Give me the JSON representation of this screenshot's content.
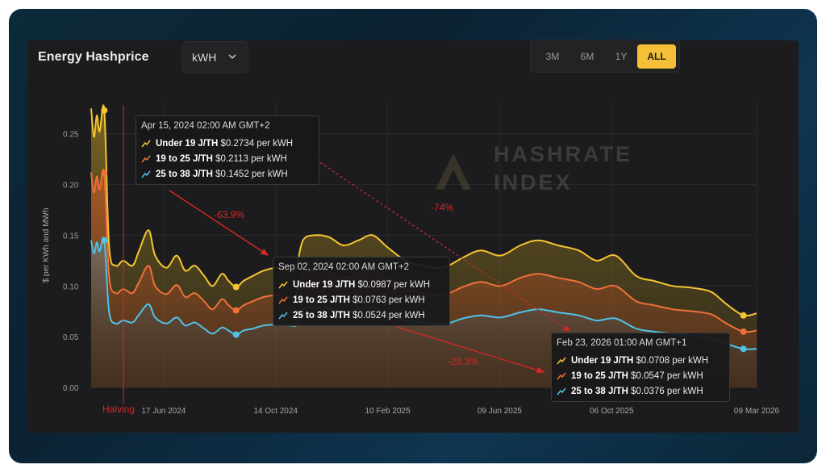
{
  "header": {
    "title": "Energy Hashprice",
    "unit_select": "kWH",
    "range_buttons": [
      "3M",
      "6M",
      "1Y",
      "ALL"
    ],
    "active_range": "ALL"
  },
  "watermark": [
    "HASHRATE",
    "INDEX"
  ],
  "colors": {
    "background": "#1c1c1e",
    "under19": "#f5c531",
    "mid": "#f0703a",
    "low": "#4fc3e8",
    "annotation": "#d42828",
    "active_button": "#f5c037"
  },
  "tooltips": [
    {
      "date": "Apr 15, 2024 02:00 AM GMT+2",
      "rows": [
        {
          "name": "Under 19 J/TH",
          "value": "$0.2734 per kWH"
        },
        {
          "name": "19 to 25 J/TH",
          "value": "$0.2113 per kWH"
        },
        {
          "name": "25 to 38 J/TH",
          "value": "$0.1452 per kWH"
        }
      ]
    },
    {
      "date": "Sep 02, 2024 02:00 AM GMT+2",
      "rows": [
        {
          "name": "Under 19 J/TH",
          "value": "$0.0987 per kWH"
        },
        {
          "name": "19 to 25 J/TH",
          "value": "$0.0763 per kWH"
        },
        {
          "name": "25 to 38 J/TH",
          "value": "$0.0524 per kWH"
        }
      ]
    },
    {
      "date": "Feb 23, 2026 01:00 AM GMT+1",
      "rows": [
        {
          "name": "Under 19 J/TH",
          "value": "$0.0708 per kWH"
        },
        {
          "name": "19 to 25 J/TH",
          "value": "$0.0547 per kWH"
        },
        {
          "name": "25 to 38 J/TH",
          "value": "$0.0376 per kWH"
        }
      ]
    }
  ],
  "annotations": {
    "drop1": "-63.9%",
    "drop2": "-74%",
    "drop3": "-28.3%",
    "halving": "Halving"
  },
  "chart_data": {
    "type": "area",
    "ylabel": "$ per KWh and MWh",
    "ylim": [
      0,
      0.28
    ],
    "yticks": [
      "0.00",
      "0.05",
      "0.10",
      "0.15",
      "0.20",
      "0.25"
    ],
    "xticks": [
      "17 Jun 2024",
      "14 Oct 2024",
      "10 Feb 2025",
      "09 Jun 2025",
      "06 Oct 2025",
      "09 Mar 2026"
    ],
    "grid": true,
    "series": [
      {
        "name": "Under 19 J/TH",
        "points": [
          [
            "2024-04-01",
            0.275
          ],
          [
            "2024-04-04",
            0.247
          ],
          [
            "2024-04-07",
            0.268
          ],
          [
            "2024-04-10",
            0.252
          ],
          [
            "2024-04-15",
            0.273
          ],
          [
            "2024-04-20",
            0.14
          ],
          [
            "2024-04-27",
            0.12
          ],
          [
            "2024-05-05",
            0.125
          ],
          [
            "2024-05-15",
            0.12
          ],
          [
            "2024-05-22",
            0.135
          ],
          [
            "2024-06-01",
            0.155
          ],
          [
            "2024-06-08",
            0.13
          ],
          [
            "2024-06-20",
            0.118
          ],
          [
            "2024-07-01",
            0.13
          ],
          [
            "2024-07-10",
            0.115
          ],
          [
            "2024-07-20",
            0.12
          ],
          [
            "2024-07-30",
            0.11
          ],
          [
            "2024-08-08",
            0.1
          ],
          [
            "2024-08-18",
            0.112
          ],
          [
            "2024-08-25",
            0.105
          ],
          [
            "2024-09-02",
            0.099
          ],
          [
            "2024-09-10",
            0.105
          ],
          [
            "2024-09-20",
            0.11
          ],
          [
            "2024-10-01",
            0.115
          ],
          [
            "2024-10-15",
            0.118
          ],
          [
            "2024-10-30",
            0.115
          ],
          [
            "2024-11-05",
            0.118
          ],
          [
            "2024-11-12",
            0.145
          ],
          [
            "2024-11-25",
            0.15
          ],
          [
            "2024-12-10",
            0.148
          ],
          [
            "2024-12-25",
            0.14
          ],
          [
            "2025-01-10",
            0.145
          ],
          [
            "2025-01-25",
            0.15
          ],
          [
            "2025-02-10",
            0.138
          ],
          [
            "2025-03-01",
            0.125
          ],
          [
            "2025-03-20",
            0.12
          ],
          [
            "2025-04-10",
            0.118
          ],
          [
            "2025-05-01",
            0.128
          ],
          [
            "2025-05-20",
            0.135
          ],
          [
            "2025-06-10",
            0.13
          ],
          [
            "2025-07-01",
            0.14
          ],
          [
            "2025-07-20",
            0.145
          ],
          [
            "2025-08-10",
            0.14
          ],
          [
            "2025-09-01",
            0.135
          ],
          [
            "2025-09-20",
            0.125
          ],
          [
            "2025-10-10",
            0.13
          ],
          [
            "2025-11-01",
            0.11
          ],
          [
            "2025-11-20",
            0.105
          ],
          [
            "2025-12-10",
            0.1
          ],
          [
            "2026-01-01",
            0.098
          ],
          [
            "2026-01-20",
            0.094
          ],
          [
            "2026-02-05",
            0.082
          ],
          [
            "2026-02-23",
            0.071
          ],
          [
            "2026-03-09",
            0.073
          ]
        ]
      },
      {
        "name": "19 to 25 J/TH",
        "points": [
          [
            "2024-04-01",
            0.212
          ],
          [
            "2024-04-04",
            0.192
          ],
          [
            "2024-04-07",
            0.208
          ],
          [
            "2024-04-10",
            0.195
          ],
          [
            "2024-04-15",
            0.211
          ],
          [
            "2024-04-20",
            0.11
          ],
          [
            "2024-04-27",
            0.093
          ],
          [
            "2024-05-05",
            0.097
          ],
          [
            "2024-05-15",
            0.093
          ],
          [
            "2024-05-22",
            0.104
          ],
          [
            "2024-06-01",
            0.12
          ],
          [
            "2024-06-08",
            0.1
          ],
          [
            "2024-06-20",
            0.092
          ],
          [
            "2024-07-01",
            0.101
          ],
          [
            "2024-07-10",
            0.089
          ],
          [
            "2024-07-20",
            0.093
          ],
          [
            "2024-07-30",
            0.085
          ],
          [
            "2024-08-08",
            0.077
          ],
          [
            "2024-08-18",
            0.087
          ],
          [
            "2024-08-25",
            0.081
          ],
          [
            "2024-09-02",
            0.076
          ],
          [
            "2024-09-10",
            0.081
          ],
          [
            "2024-09-20",
            0.085
          ],
          [
            "2024-10-01",
            0.089
          ],
          [
            "2024-10-15",
            0.091
          ],
          [
            "2024-10-30",
            0.089
          ],
          [
            "2024-11-05",
            0.091
          ],
          [
            "2024-11-12",
            0.112
          ],
          [
            "2024-11-25",
            0.116
          ],
          [
            "2024-12-10",
            0.114
          ],
          [
            "2024-12-25",
            0.108
          ],
          [
            "2025-01-10",
            0.112
          ],
          [
            "2025-01-25",
            0.116
          ],
          [
            "2025-02-10",
            0.107
          ],
          [
            "2025-03-01",
            0.097
          ],
          [
            "2025-03-20",
            0.093
          ],
          [
            "2025-04-10",
            0.091
          ],
          [
            "2025-05-01",
            0.099
          ],
          [
            "2025-05-20",
            0.104
          ],
          [
            "2025-06-10",
            0.1
          ],
          [
            "2025-07-01",
            0.108
          ],
          [
            "2025-07-20",
            0.112
          ],
          [
            "2025-08-10",
            0.108
          ],
          [
            "2025-09-01",
            0.104
          ],
          [
            "2025-09-20",
            0.097
          ],
          [
            "2025-10-10",
            0.1
          ],
          [
            "2025-11-01",
            0.085
          ],
          [
            "2025-11-20",
            0.081
          ],
          [
            "2025-12-10",
            0.077
          ],
          [
            "2026-01-01",
            0.075
          ],
          [
            "2026-01-20",
            0.072
          ],
          [
            "2026-02-05",
            0.063
          ],
          [
            "2026-02-23",
            0.055
          ],
          [
            "2026-03-09",
            0.056
          ]
        ]
      },
      {
        "name": "25 to 38 J/TH",
        "points": [
          [
            "2024-04-01",
            0.145
          ],
          [
            "2024-04-04",
            0.132
          ],
          [
            "2024-04-07",
            0.143
          ],
          [
            "2024-04-10",
            0.134
          ],
          [
            "2024-04-15",
            0.145
          ],
          [
            "2024-04-20",
            0.075
          ],
          [
            "2024-04-27",
            0.063
          ],
          [
            "2024-05-05",
            0.066
          ],
          [
            "2024-05-15",
            0.064
          ],
          [
            "2024-05-22",
            0.072
          ],
          [
            "2024-06-01",
            0.082
          ],
          [
            "2024-06-08",
            0.069
          ],
          [
            "2024-06-20",
            0.063
          ],
          [
            "2024-07-01",
            0.069
          ],
          [
            "2024-07-10",
            0.061
          ],
          [
            "2024-07-20",
            0.064
          ],
          [
            "2024-07-30",
            0.058
          ],
          [
            "2024-08-08",
            0.053
          ],
          [
            "2024-08-18",
            0.059
          ],
          [
            "2024-08-25",
            0.056
          ],
          [
            "2024-09-02",
            0.052
          ],
          [
            "2024-09-10",
            0.056
          ],
          [
            "2024-09-20",
            0.058
          ],
          [
            "2024-10-01",
            0.061
          ],
          [
            "2024-10-15",
            0.062
          ],
          [
            "2024-10-30",
            0.061
          ],
          [
            "2024-11-05",
            0.062
          ],
          [
            "2024-11-12",
            0.077
          ],
          [
            "2024-11-25",
            0.079
          ],
          [
            "2024-12-10",
            0.078
          ],
          [
            "2024-12-25",
            0.074
          ],
          [
            "2025-01-10",
            0.077
          ],
          [
            "2025-01-25",
            0.079
          ],
          [
            "2025-02-10",
            0.073
          ],
          [
            "2025-03-01",
            0.066
          ],
          [
            "2025-03-20",
            0.064
          ],
          [
            "2025-04-10",
            0.062
          ],
          [
            "2025-05-01",
            0.068
          ],
          [
            "2025-05-20",
            0.071
          ],
          [
            "2025-06-10",
            0.069
          ],
          [
            "2025-07-01",
            0.074
          ],
          [
            "2025-07-20",
            0.077
          ],
          [
            "2025-08-10",
            0.074
          ],
          [
            "2025-09-01",
            0.071
          ],
          [
            "2025-09-20",
            0.066
          ],
          [
            "2025-10-10",
            0.068
          ],
          [
            "2025-11-01",
            0.058
          ],
          [
            "2025-11-20",
            0.055
          ],
          [
            "2025-12-10",
            0.053
          ],
          [
            "2026-01-01",
            0.051
          ],
          [
            "2026-01-20",
            0.049
          ],
          [
            "2026-02-05",
            0.043
          ],
          [
            "2026-02-23",
            0.038
          ],
          [
            "2026-03-09",
            0.038
          ]
        ]
      }
    ]
  }
}
